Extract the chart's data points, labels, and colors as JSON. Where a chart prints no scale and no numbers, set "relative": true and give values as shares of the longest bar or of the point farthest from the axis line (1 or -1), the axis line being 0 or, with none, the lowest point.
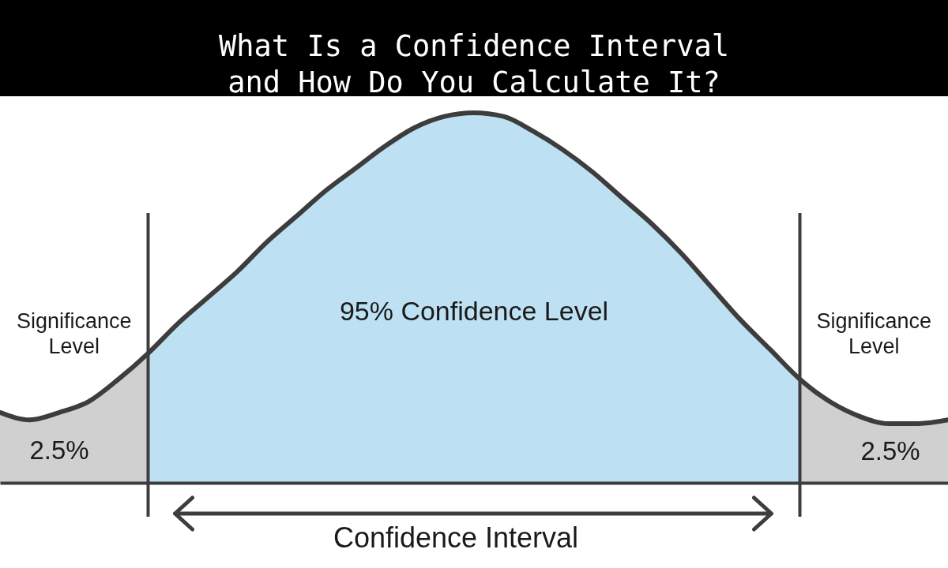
{
  "chart_data": {
    "type": "area",
    "title": "What Is a Confidence Interval\nand How Do You Calculate It?",
    "relative": true,
    "line_style": "solid",
    "categories": [
      null,
      null,
      null,
      null,
      null,
      null,
      null,
      null,
      null,
      null,
      null,
      null,
      null,
      null,
      null,
      null,
      null,
      null,
      null,
      null,
      null,
      null,
      null,
      null,
      null,
      null,
      null,
      null,
      null,
      null,
      null,
      null,
      null
    ],
    "series": [
      {
        "type": "line",
        "color": "#3d3d3d",
        "values": [
          0.19,
          0.17,
          0.19,
          0.22,
          0.28,
          0.35,
          0.43,
          0.5,
          0.57,
          0.65,
          0.72,
          0.79,
          0.85,
          0.91,
          0.96,
          0.99,
          1,
          0.99,
          0.95,
          0.9,
          0.84,
          0.77,
          0.7,
          0.62,
          0.53,
          0.44,
          0.36,
          0.28,
          0.22,
          0.18,
          0.16,
          0.16,
          0.17
        ]
      },
      {
        "name": "Significance Level",
        "color": "#d0d0d0",
        "values": [
          0.19,
          0.17,
          0.19,
          0.22,
          0.28,
          0.35,
          null,
          null,
          null,
          null,
          null,
          null,
          null,
          null,
          null,
          null,
          null,
          null,
          null,
          null,
          null,
          null,
          null,
          null,
          null,
          null,
          null,
          null,
          null,
          null,
          null,
          null,
          null
        ]
      },
      {
        "name": "95% Confidence Level",
        "color": "#bde1f2",
        "values": [
          null,
          null,
          null,
          null,
          null,
          0.35,
          0.43,
          0.5,
          0.57,
          0.65,
          0.72,
          0.79,
          0.85,
          0.91,
          0.96,
          0.99,
          1,
          0.99,
          0.95,
          0.9,
          0.84,
          0.77,
          0.7,
          0.62,
          0.53,
          0.44,
          0.36,
          0.28,
          null,
          null,
          null,
          null,
          null
        ]
      },
      {
        "name": "Significance Level",
        "color": "#d0d0d0",
        "values": [
          null,
          null,
          null,
          null,
          null,
          null,
          null,
          null,
          null,
          null,
          null,
          null,
          null,
          null,
          null,
          null,
          null,
          null,
          null,
          null,
          null,
          null,
          null,
          null,
          null,
          null,
          null,
          0.28,
          0.22,
          0.18,
          0.16,
          0.16,
          0.17
        ]
      }
    ],
    "annotations": [
      "2.5%",
      "2.5%",
      "Confidence Interval"
    ]
  }
}
